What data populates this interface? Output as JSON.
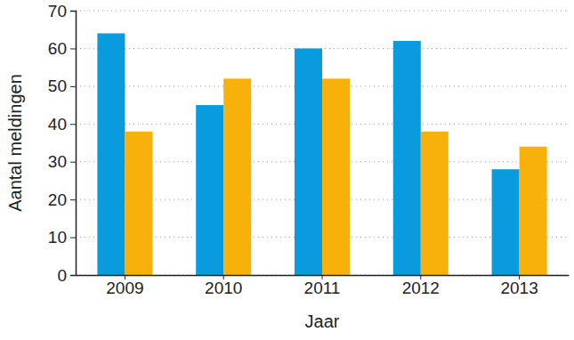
{
  "chart_data": {
    "type": "bar",
    "x_label": "Jaar",
    "y_label": "Aantal meldingen",
    "categories": [
      "2009",
      "2010",
      "2011",
      "2012",
      "2013"
    ],
    "series": [
      {
        "color": "#0a9ade",
        "values": [
          64,
          45,
          60,
          62,
          28
        ]
      },
      {
        "color": "#f7b10a",
        "values": [
          38,
          52,
          52,
          38,
          34
        ]
      }
    ],
    "ylim": [
      0,
      70
    ],
    "yticks": [
      0,
      10,
      20,
      30,
      40,
      50,
      60,
      70
    ],
    "grid": true
  }
}
